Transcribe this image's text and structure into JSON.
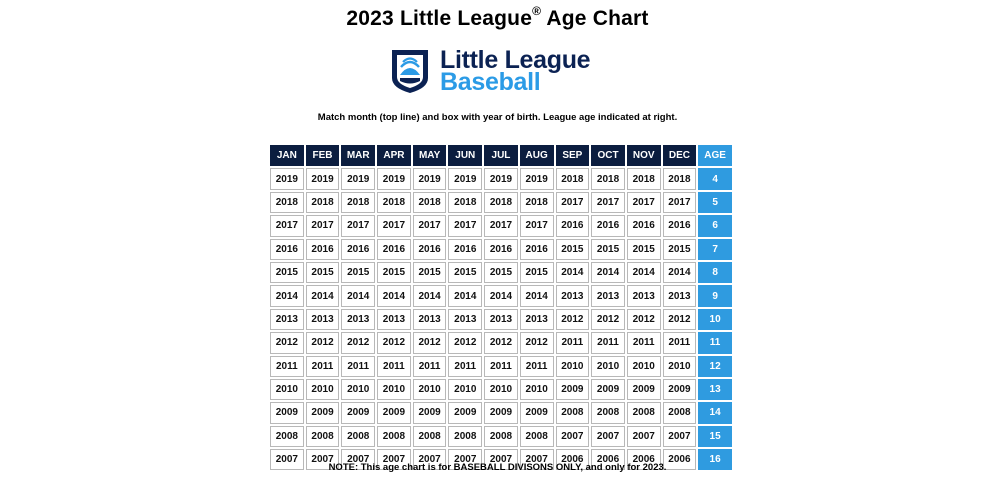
{
  "title": {
    "text": "2023 Little League",
    "mark": "®",
    "suffix": "Age Chart"
  },
  "logo": {
    "line1": "Little League",
    "line2": "Baseball",
    "icon": "little-league-keystone-icon",
    "color_primary": "#0b2253",
    "color_accent": "#2b9be6"
  },
  "instructions": "Match month (top line) and box with year of birth. League age indicated at right.",
  "table": {
    "months": [
      "JAN",
      "FEB",
      "MAR",
      "APR",
      "MAY",
      "JUN",
      "JUL",
      "AUG",
      "SEP",
      "OCT",
      "NOV",
      "DEC"
    ],
    "age_header": "AGE",
    "rows": [
      {
        "years": [
          "2019",
          "2019",
          "2019",
          "2019",
          "2019",
          "2019",
          "2019",
          "2019",
          "2018",
          "2018",
          "2018",
          "2018"
        ],
        "age": "4"
      },
      {
        "years": [
          "2018",
          "2018",
          "2018",
          "2018",
          "2018",
          "2018",
          "2018",
          "2018",
          "2017",
          "2017",
          "2017",
          "2017"
        ],
        "age": "5"
      },
      {
        "years": [
          "2017",
          "2017",
          "2017",
          "2017",
          "2017",
          "2017",
          "2017",
          "2017",
          "2016",
          "2016",
          "2016",
          "2016"
        ],
        "age": "6"
      },
      {
        "years": [
          "2016",
          "2016",
          "2016",
          "2016",
          "2016",
          "2016",
          "2016",
          "2016",
          "2015",
          "2015",
          "2015",
          "2015"
        ],
        "age": "7"
      },
      {
        "years": [
          "2015",
          "2015",
          "2015",
          "2015",
          "2015",
          "2015",
          "2015",
          "2015",
          "2014",
          "2014",
          "2014",
          "2014"
        ],
        "age": "8"
      },
      {
        "years": [
          "2014",
          "2014",
          "2014",
          "2014",
          "2014",
          "2014",
          "2014",
          "2014",
          "2013",
          "2013",
          "2013",
          "2013"
        ],
        "age": "9"
      },
      {
        "years": [
          "2013",
          "2013",
          "2013",
          "2013",
          "2013",
          "2013",
          "2013",
          "2013",
          "2012",
          "2012",
          "2012",
          "2012"
        ],
        "age": "10"
      },
      {
        "years": [
          "2012",
          "2012",
          "2012",
          "2012",
          "2012",
          "2012",
          "2012",
          "2012",
          "2011",
          "2011",
          "2011",
          "2011"
        ],
        "age": "11"
      },
      {
        "years": [
          "2011",
          "2011",
          "2011",
          "2011",
          "2011",
          "2011",
          "2011",
          "2011",
          "2010",
          "2010",
          "2010",
          "2010"
        ],
        "age": "12"
      },
      {
        "years": [
          "2010",
          "2010",
          "2010",
          "2010",
          "2010",
          "2010",
          "2010",
          "2010",
          "2009",
          "2009",
          "2009",
          "2009"
        ],
        "age": "13"
      },
      {
        "years": [
          "2009",
          "2009",
          "2009",
          "2009",
          "2009",
          "2009",
          "2009",
          "2009",
          "2008",
          "2008",
          "2008",
          "2008"
        ],
        "age": "14"
      },
      {
        "years": [
          "2008",
          "2008",
          "2008",
          "2008",
          "2008",
          "2008",
          "2008",
          "2008",
          "2007",
          "2007",
          "2007",
          "2007"
        ],
        "age": "15"
      },
      {
        "years": [
          "2007",
          "2007",
          "2007",
          "2007",
          "2007",
          "2007",
          "2007",
          "2007",
          "2006",
          "2006",
          "2006",
          "2006"
        ],
        "age": "16"
      }
    ],
    "header_color": "#0b1d3f",
    "age_color": "#2f9be0"
  },
  "note": "NOTE: This age chart is for BASEBALL DIVISONS ONLY, and only for 2023."
}
